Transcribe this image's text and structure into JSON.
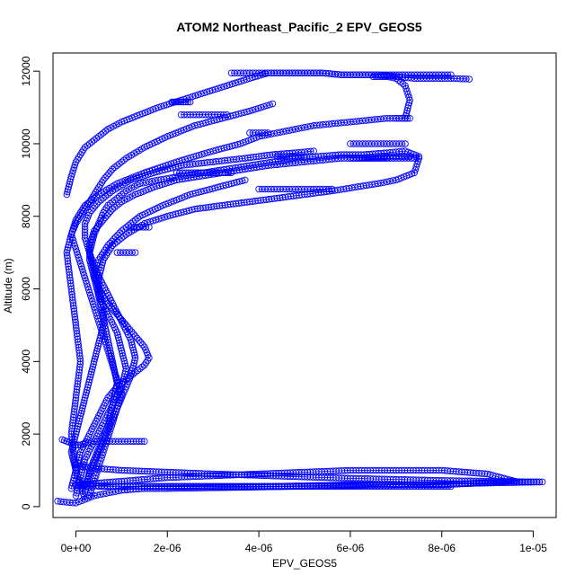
{
  "chart_data": {
    "type": "scatter",
    "title": "ATOM2 Northeast_Pacific_2 EPV_GEOS5",
    "xlabel": "EPV_GEOS5",
    "ylabel": "Altitude (m)",
    "xlim": [
      -5e-07,
      1.05e-05
    ],
    "ylim": [
      -300,
      12500
    ],
    "x_ticks": [
      {
        "value": 0,
        "label": "0e+00"
      },
      {
        "value": 2e-06,
        "label": "2e-06"
      },
      {
        "value": 4e-06,
        "label": "4e-06"
      },
      {
        "value": 6e-06,
        "label": "6e-06"
      },
      {
        "value": 8e-06,
        "label": "8e-06"
      },
      {
        "value": 1e-05,
        "label": "1e-05"
      }
    ],
    "y_ticks": [
      {
        "value": 0,
        "label": "0"
      },
      {
        "value": 2000,
        "label": "2000"
      },
      {
        "value": 4000,
        "label": "4000"
      },
      {
        "value": 6000,
        "label": "6000"
      },
      {
        "value": 8000,
        "label": "8000"
      },
      {
        "value": 10000,
        "label": "10000"
      },
      {
        "value": 12000,
        "label": "12000"
      }
    ],
    "color": "#0000ff",
    "marker": "open-circle",
    "series": [
      {
        "x": [
          2e-07,
          1e-07,
          0,
          -1e-07,
          0,
          1e-07,
          2e-07,
          3e-07,
          4e-07,
          5e-07,
          6e-07,
          6e-07,
          5e-07,
          4e-07,
          3e-07,
          4e-07,
          5e-07,
          6e-07,
          7e-07,
          9e-07,
          1.1e-06,
          1.4e-06,
          1.8e-06,
          2.3e-06,
          2.8e-06,
          3.3e-06,
          3.8e-06,
          4.3e-06,
          4.8e-06,
          5.3e-06,
          5.8e-06,
          6.3e-06,
          6.8e-06,
          7.2e-06,
          7.5e-06,
          7.4e-06,
          7e-06,
          6.5e-06,
          6e-06
        ],
        "y": [
          200,
          600,
          1000,
          1500,
          2000,
          2500,
          3000,
          3500,
          4000,
          4500,
          5000,
          5500,
          6000,
          6500,
          7000,
          7500,
          7800,
          8100,
          8300,
          8500,
          8700,
          8900,
          9000,
          9100,
          9200,
          9300,
          9400,
          9500,
          9600,
          9650,
          9700,
          9700,
          9750,
          9800,
          9650,
          9600,
          9600,
          9600,
          9600
        ]
      },
      {
        "x": [
          3e-07,
          4e-07,
          5e-07,
          6e-07,
          7e-07,
          8e-07,
          9e-07,
          1e-06,
          9e-07,
          8e-07,
          7e-07,
          6e-07,
          5e-07,
          4e-07,
          3e-07,
          2e-07,
          1e-07,
          0,
          -1e-07,
          0,
          2e-07,
          5e-07,
          9e-07,
          1.5e-06,
          2.2e-06,
          3e-06,
          3.6e-06,
          4e-06,
          4.4e-06,
          4.8e-06,
          5.2e-06,
          5.6e-06,
          6e-06,
          6.4e-06,
          6.8e-06,
          7.2e-06,
          7.3e-06,
          7.2e-06,
          7e-06,
          6.8e-06,
          6.5e-06
        ],
        "y": [
          300,
          700,
          1100,
          1500,
          1900,
          2300,
          2700,
          3100,
          3500,
          3900,
          4300,
          4700,
          5100,
          5500,
          5900,
          6300,
          6700,
          7100,
          7500,
          7900,
          8300,
          8600,
          8900,
          9200,
          9500,
          9800,
          10000,
          10200,
          10300,
          10400,
          10500,
          10550,
          10600,
          10650,
          10700,
          10700,
          11200,
          11600,
          11800,
          11850,
          11850
        ]
      },
      {
        "x": [
          0,
          1e-07,
          2e-07,
          4e-07,
          6e-07,
          8e-07,
          1e-06,
          1.1e-06,
          1e-06,
          9e-07,
          7e-07,
          5e-07,
          4e-07,
          3e-07,
          3e-07,
          4e-07,
          6e-07,
          8e-07,
          1e-06,
          1.3e-06,
          1.7e-06,
          2.2e-06,
          2.7e-06,
          3.2e-06,
          3.7e-06,
          4.2e-06,
          4.6e-06,
          5e-06,
          5.4e-06,
          5.8e-06,
          6.2e-06,
          6.6e-06,
          7e-06,
          7.3e-06
        ],
        "y": [
          300,
          800,
          1300,
          1800,
          2300,
          2800,
          3300,
          3800,
          4300,
          4800,
          5300,
          5800,
          6300,
          6800,
          7200,
          7600,
          7900,
          8200,
          8400,
          8600,
          8800,
          9000,
          9100,
          9200,
          9300,
          9400,
          9450,
          9500,
          9550,
          9600,
          9600,
          9650,
          9650,
          9650
        ]
      },
      {
        "x": [
          2e-07,
          3e-07,
          5e-07,
          7e-07,
          8e-07,
          9e-07,
          8e-07,
          7e-07,
          6e-07,
          5e-07,
          5e-07,
          6e-07,
          8e-07,
          1.1e-06,
          1.5e-06,
          2e-06,
          2.6e-06,
          3.2e-06,
          3.8e-06,
          4.4e-06,
          5e-06,
          5.6e-06,
          6.1e-06,
          6.6e-06,
          7e-06,
          7.4e-06,
          7.5e-06
        ],
        "y": [
          400,
          1000,
          1600,
          2200,
          2800,
          3400,
          4000,
          4600,
          5200,
          5800,
          6300,
          6800,
          7200,
          7500,
          7800,
          8000,
          8200,
          8300,
          8400,
          8500,
          8600,
          8700,
          8800,
          8900,
          9000,
          9200,
          9600
        ]
      },
      {
        "x": [
          -1e-07,
          0,
          1e-07,
          3e-07,
          5e-07,
          7e-07,
          9e-07,
          1.1e-06,
          1.3e-06,
          1.5e-06,
          1.6e-06,
          1.5e-06,
          1.3e-06,
          1.1e-06,
          9e-07,
          7e-07,
          5e-07,
          4e-07,
          5e-07,
          7e-07,
          1e-06,
          1.4e-06,
          1.9e-06,
          2.5e-06,
          3.1e-06,
          3.7e-06
        ],
        "y": [
          500,
          1000,
          1500,
          2000,
          2500,
          3000,
          3300,
          3500,
          3700,
          3900,
          4100,
          4400,
          4700,
          5000,
          5300,
          5600,
          6000,
          6400,
          6800,
          7200,
          7600,
          8000,
          8300,
          8600,
          8800,
          9000
        ]
      },
      {
        "x": [
          2e-07,
          4e-07,
          6e-07,
          8e-07,
          1e-06,
          1.2e-06,
          1.3e-06,
          1.2e-06,
          1e-06,
          8e-07,
          6e-07,
          4e-07,
          3e-07,
          2e-07,
          2e-07,
          3e-07,
          5e-07,
          8e-07,
          1.2e-06,
          1.7e-06,
          2.3e-06,
          3e-06,
          3.7e-06,
          4.3e-06,
          4.8e-06,
          5.2e-06
        ],
        "y": [
          600,
          1200,
          1800,
          2400,
          3000,
          3600,
          4100,
          4600,
          5100,
          5600,
          6100,
          6600,
          7000,
          7400,
          7800,
          8100,
          8400,
          8700,
          9000,
          9200,
          9400,
          9500,
          9600,
          9700,
          9750,
          9800
        ]
      },
      {
        "x": [
          -3e-07,
          -2e-07,
          -1e-07,
          0,
          1e-07,
          2e-07,
          4e-07,
          6e-07,
          8e-07,
          1e-06,
          1.2e-06,
          1.5e-06
        ],
        "y": [
          1850,
          1800,
          1750,
          1700,
          1700,
          1750,
          1800,
          1800,
          1800,
          1800,
          1800,
          1800
        ]
      },
      {
        "x": [
          0,
          -1e-07,
          0,
          1e-07,
          0,
          -1e-07,
          -2e-07,
          -1e-07,
          0,
          1e-07,
          2e-07,
          3e-07,
          4e-07,
          5e-07,
          6e-07,
          8e-07,
          1.1e-06,
          1.5e-06,
          2e-06,
          2.6e-06,
          3.2e-06,
          3.8e-06,
          4.3e-06
        ],
        "y": [
          1000,
          2000,
          3000,
          4000,
          5000,
          6000,
          7000,
          7500,
          7800,
          8000,
          8200,
          8400,
          8600,
          8800,
          9000,
          9300,
          9600,
          9900,
          10200,
          10500,
          10700,
          10900,
          11100
        ]
      },
      {
        "x": [
          -2e-07,
          -1e-07,
          0,
          2e-07,
          4e-07,
          7e-07,
          1e-06,
          1.4e-06,
          1.8e-06,
          2.3e-06,
          2.8e-06,
          3.3e-06,
          3.8e-06,
          4.2e-06,
          4.6e-06,
          5e-06,
          5.4e-06,
          5.8e-06,
          6.2e-06,
          6.6e-06,
          7e-06,
          7.4e-06,
          7.8e-06,
          8.2e-06,
          8.6e-06
        ],
        "y": [
          8600,
          9100,
          9500,
          9900,
          10100,
          10400,
          10600,
          10800,
          11000,
          11200,
          11400,
          11600,
          11800,
          11950,
          11950,
          11950,
          11950,
          11900,
          11900,
          11900,
          11850,
          11800,
          11800,
          11800,
          11780
        ]
      },
      {
        "x": [
          3.4e-06,
          3.8e-06,
          4.2e-06,
          4.6e-06,
          5e-06,
          5.4e-06,
          5.8e-06,
          6.2e-06,
          6.6e-06,
          7e-06,
          7.4e-06,
          7.8e-06,
          8.2e-06
        ],
        "y": [
          11950,
          11950,
          11950,
          11950,
          11950,
          11950,
          11900,
          11900,
          11900,
          11900,
          11900,
          11900,
          11900
        ]
      },
      {
        "x": [
          -4e-07,
          -2e-07,
          0,
          2e-07,
          4e-07,
          6e-07,
          8e-07,
          1e-06,
          1.5e-06,
          2e-06,
          3e-06,
          4e-06,
          5e-06,
          6e-06,
          7e-06,
          8e-06,
          9e-06,
          1.02e-05,
          9e-06,
          8e-06,
          7e-06,
          6e-06,
          5e-06,
          4e-06,
          3e-06,
          2e-06,
          1e-06,
          5e-07,
          2e-07,
          0
        ],
        "y": [
          150,
          120,
          100,
          200,
          300,
          350,
          400,
          450,
          500,
          500,
          520,
          540,
          560,
          580,
          600,
          620,
          650,
          680,
          700,
          720,
          750,
          780,
          820,
          860,
          900,
          950,
          1000,
          1050,
          1100,
          1150
        ]
      },
      {
        "x": [
          0,
          1e-06,
          2e-06,
          3e-06,
          4e-06,
          5e-06,
          6e-06,
          7e-06,
          8e-06,
          9e-06,
          9.6e-06,
          8e-06,
          6e-06,
          4e-06,
          2e-06,
          1e-06,
          0
        ],
        "y": [
          600,
          700,
          800,
          850,
          900,
          950,
          1000,
          1000,
          1000,
          900,
          700,
          600,
          600,
          550,
          550,
          560,
          580
        ]
      },
      {
        "x": [
          5e-07,
          1e-06,
          2e-06,
          3e-06,
          4e-06,
          5e-06,
          6e-06,
          6.4e-06,
          6.8e-06,
          7.2e-06,
          7.6e-06,
          8e-06,
          8.2e-06
        ],
        "y": [
          560,
          560,
          560,
          560,
          560,
          560,
          560,
          560,
          560,
          560,
          560,
          560,
          560
        ]
      },
      {
        "x": [
          2.1e-06,
          2.2e-06,
          2.3e-06,
          2.4e-06,
          2.5e-06
        ],
        "y": [
          11150,
          11150,
          11150,
          11150,
          11150
        ]
      },
      {
        "x": [
          2.3e-06,
          2.5e-06,
          2.7e-06,
          2.9e-06,
          3.1e-06,
          3.3e-06
        ],
        "y": [
          10800,
          10800,
          10800,
          10800,
          10800,
          10800
        ]
      },
      {
        "x": [
          3.8e-06,
          4e-06,
          4.2e-06
        ],
        "y": [
          10300,
          10300,
          10300
        ]
      },
      {
        "x": [
          4.4e-06,
          4.6e-06,
          4.8e-06,
          5e-06
        ],
        "y": [
          9650,
          9650,
          9650,
          9650
        ]
      },
      {
        "x": [
          2.2e-06,
          2.6e-06,
          3e-06,
          3.4e-06
        ],
        "y": [
          9200,
          9200,
          9200,
          9200
        ]
      },
      {
        "x": [
          4e-06,
          4.4e-06,
          4.8e-06,
          5.2e-06,
          5.6e-06
        ],
        "y": [
          8750,
          8750,
          8750,
          8750,
          8750
        ]
      },
      {
        "x": [
          1.2e-06,
          1.4e-06,
          1.6e-06
        ],
        "y": [
          7700,
          7700,
          7700
        ]
      },
      {
        "x": [
          9e-07,
          1.1e-06,
          1.3e-06
        ],
        "y": [
          7000,
          7000,
          7000
        ]
      },
      {
        "x": [
          6e-06,
          6.4e-06,
          6.8e-06,
          7.2e-06
        ],
        "y": [
          10000,
          10000,
          10000,
          10000
        ]
      },
      {
        "x": [
          6e-06,
          6.4e-06,
          6.8e-06
        ],
        "y": [
          9600,
          9600,
          9600
        ]
      },
      {
        "x": [
          7e-06,
          7.2e-06,
          7.3e-06
        ],
        "y": [
          10700,
          10700,
          10700
        ]
      }
    ]
  }
}
